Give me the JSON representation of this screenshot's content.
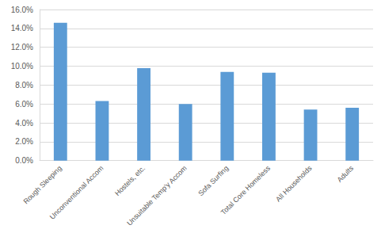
{
  "chart_data": {
    "type": "bar",
    "categories": [
      "Rough Sleeping",
      "Unconventional Accom",
      "Hostels, etc.",
      "Unsuitable Temp'y Accom",
      "Sofa Surfing",
      "Total Core Homeless",
      "All Households",
      "Adults"
    ],
    "values": [
      14.6,
      6.3,
      9.8,
      6.0,
      9.4,
      9.3,
      5.4,
      5.6
    ],
    "color": "#5b9bd5",
    "ylim": [
      0,
      16
    ],
    "yticks": [
      {
        "value": 0,
        "label": "0.0%"
      },
      {
        "value": 2,
        "label": "2.0%"
      },
      {
        "value": 4,
        "label": "4.0%"
      },
      {
        "value": 6,
        "label": "6.0%"
      },
      {
        "value": 8,
        "label": "8.0%"
      },
      {
        "value": 10,
        "label": "10.0%"
      },
      {
        "value": 12,
        "label": "12.0%"
      },
      {
        "value": 14,
        "label": "14.0%"
      },
      {
        "value": 16,
        "label": "16.0%"
      }
    ],
    "grid": true
  }
}
